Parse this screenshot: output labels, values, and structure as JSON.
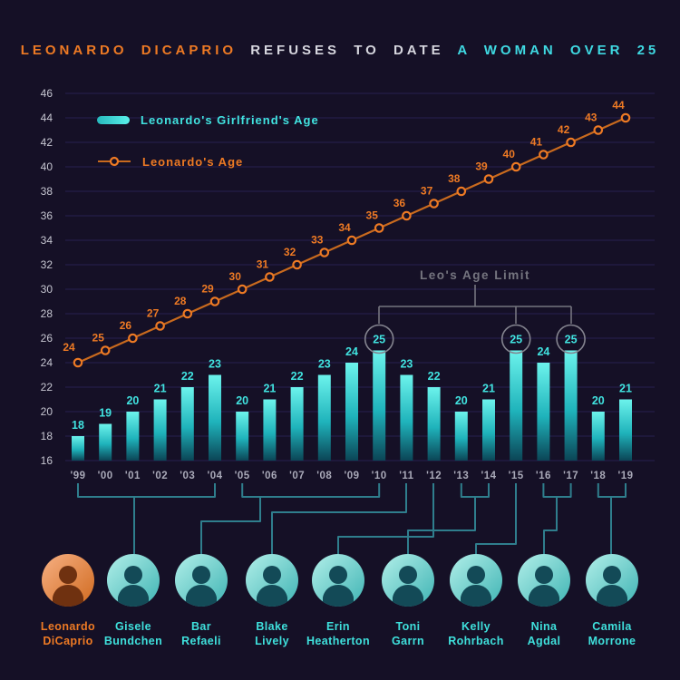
{
  "title": {
    "highlight_left": "LEONARDO DICAPRIO",
    "middle": "REFUSES TO DATE",
    "highlight_right": "A WOMAN OVER 25"
  },
  "legend": {
    "girlfriend_label": "Leonardo's Girlfriend's Age",
    "leo_label": "Leonardo's Age"
  },
  "annotation": {
    "label": "Leo's Age Limit",
    "circled_years": [
      "'10",
      "'15",
      "'17"
    ]
  },
  "chart_data": {
    "type": "bar",
    "title": "Leonardo DiCaprio refuses to date a woman over 25",
    "categories": [
      "'99",
      "'00",
      "'01",
      "'02",
      "'03",
      "'04",
      "'05",
      "'06",
      "'07",
      "'08",
      "'09",
      "'10",
      "'11",
      "'12",
      "'13",
      "'14",
      "'15",
      "'16",
      "'17",
      "'18",
      "'19"
    ],
    "series": [
      {
        "name": "Leonardo's Girlfriend's Age",
        "type": "bar",
        "color": "#41e3e0",
        "values": [
          18,
          19,
          20,
          21,
          22,
          23,
          20,
          21,
          22,
          23,
          24,
          25,
          23,
          22,
          20,
          21,
          25,
          24,
          25,
          20,
          21
        ]
      },
      {
        "name": "Leonardo's Age",
        "type": "line",
        "color": "#ee7a24",
        "values": [
          24,
          25,
          26,
          27,
          28,
          29,
          30,
          31,
          32,
          33,
          34,
          35,
          36,
          37,
          38,
          39,
          40,
          41,
          42,
          43,
          44
        ]
      }
    ],
    "yticks": [
      16,
      18,
      20,
      22,
      24,
      26,
      28,
      30,
      32,
      34,
      36,
      38,
      40,
      42,
      44,
      46
    ],
    "ylim": [
      16,
      46
    ],
    "ytick_step": 2,
    "grid": true,
    "legend_position": "top-left"
  },
  "people": [
    {
      "name": "Leonardo DiCaprio",
      "name_lines": [
        "Leonardo",
        "DiCaprio"
      ],
      "type": "leo"
    },
    {
      "name": "Gisele Bundchen",
      "name_lines": [
        "Gisele",
        "Bundchen"
      ],
      "type": "girlfriend",
      "years": [
        "'99",
        "'04"
      ]
    },
    {
      "name": "Bar Refaeli",
      "name_lines": [
        "Bar",
        "Refaeli"
      ],
      "type": "girlfriend",
      "years": [
        "'05",
        "'10"
      ]
    },
    {
      "name": "Blake Lively",
      "name_lines": [
        "Blake",
        "Lively"
      ],
      "type": "girlfriend",
      "years": [
        "'11"
      ]
    },
    {
      "name": "Erin Heatherton",
      "name_lines": [
        "Erin",
        "Heatherton"
      ],
      "type": "girlfriend",
      "years": [
        "'12"
      ]
    },
    {
      "name": "Toni Garrn",
      "name_lines": [
        "Toni",
        "Garrn"
      ],
      "type": "girlfriend",
      "years": [
        "'13",
        "'14"
      ]
    },
    {
      "name": "Kelly Rohrbach",
      "name_lines": [
        "Kelly",
        "Rohrbach"
      ],
      "type": "girlfriend",
      "years": [
        "'15"
      ]
    },
    {
      "name": "Nina Agdal",
      "name_lines": [
        "Nina",
        "Agdal"
      ],
      "type": "girlfriend",
      "years": [
        "'16",
        "'17"
      ]
    },
    {
      "name": "Camila Morrone",
      "name_lines": [
        "Camila",
        "Morrone"
      ],
      "type": "girlfriend",
      "years": [
        "'18",
        "'19"
      ]
    }
  ],
  "colors": {
    "background": "#151026",
    "orange": "#ee7a24",
    "line_orange": "#c96a1e",
    "cyan": "#41e3e0",
    "title_cyan": "#3fd9e2",
    "grid": "#272150",
    "axis_text": "#c7c7d2",
    "muted_text": "#a9a9b8",
    "annotation_gray": "#75757f",
    "connector_teal": "#2f7e8d"
  }
}
